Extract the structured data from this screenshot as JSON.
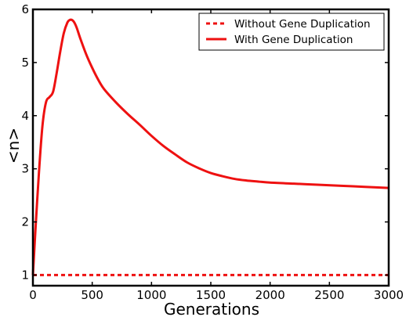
{
  "chart_data": {
    "type": "line",
    "xlabel": "Generations",
    "ylabel": "<n>",
    "xlim": [
      0,
      3000
    ],
    "ylim": [
      0.8,
      6
    ],
    "xticks": [
      0,
      500,
      1000,
      1500,
      2000,
      2500,
      3000
    ],
    "xtick_labels": [
      "0",
      "500",
      "1000",
      "1500",
      "2000",
      "2500",
      "3000"
    ],
    "yticks": [
      1,
      2,
      3,
      4,
      5,
      6
    ],
    "ytick_labels": [
      "1",
      "2",
      "3",
      "4",
      "5",
      "6"
    ],
    "grid": false,
    "legend_position": "top-right",
    "series": [
      {
        "name": "Without Gene Duplication",
        "style": "dashed",
        "color": "#ee1111",
        "x": [
          0,
          3000
        ],
        "y": [
          1.0,
          1.0
        ]
      },
      {
        "name": "With Gene Duplication",
        "style": "solid",
        "color": "#ee1111",
        "x": [
          0,
          20,
          50,
          80,
          110,
          140,
          170,
          200,
          230,
          260,
          290,
          310,
          330,
          350,
          370,
          400,
          450,
          500,
          550,
          600,
          700,
          800,
          900,
          1000,
          1100,
          1200,
          1300,
          1400,
          1500,
          1600,
          1700,
          1800,
          1900,
          2000,
          2200,
          2400,
          2600,
          2800,
          3000
        ],
        "y": [
          1.0,
          1.8,
          2.9,
          3.8,
          4.25,
          4.35,
          4.45,
          4.8,
          5.2,
          5.55,
          5.75,
          5.8,
          5.8,
          5.75,
          5.65,
          5.45,
          5.15,
          4.9,
          4.68,
          4.5,
          4.25,
          4.03,
          3.83,
          3.62,
          3.43,
          3.27,
          3.12,
          3.01,
          2.92,
          2.86,
          2.81,
          2.78,
          2.76,
          2.74,
          2.72,
          2.7,
          2.68,
          2.66,
          2.64
        ]
      }
    ]
  }
}
